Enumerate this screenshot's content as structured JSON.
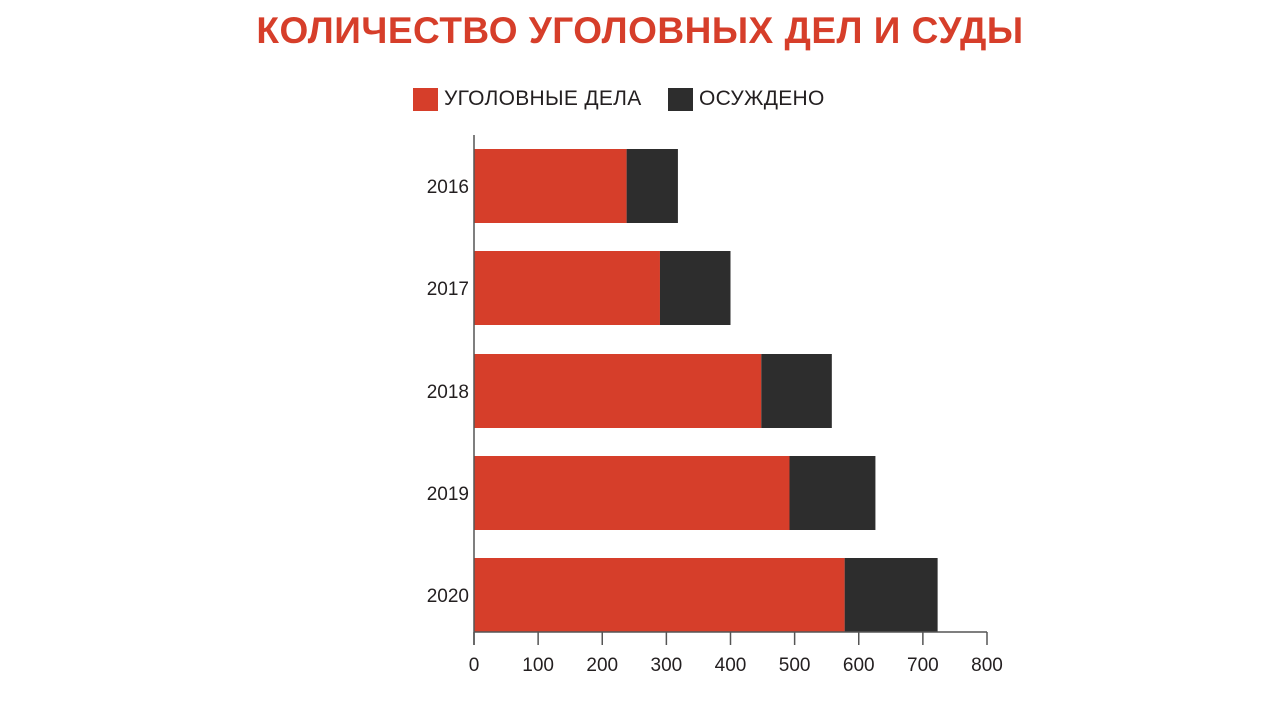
{
  "title": "КОЛИЧЕСТВО УГОЛОВНЫХ ДЕЛ И СУДЫ",
  "colors": {
    "title": "#d63e2a",
    "criminal_cases": "#d63e2a",
    "convicted": "#2d2d2d",
    "axis": "#555555",
    "text": "#231f20"
  },
  "legend": [
    {
      "label": "УГОЛОВНЫЕ ДЕЛА",
      "color": "#d63e2a"
    },
    {
      "label": "ОСУЖДЕНО",
      "color": "#2d2d2d"
    }
  ],
  "chart_data": {
    "type": "bar",
    "orientation": "horizontal",
    "stacked": true,
    "title": "КОЛИЧЕСТВО УГОЛОВНЫХ ДЕЛ И СУДЫ",
    "categories": [
      "2016",
      "2017",
      "2018",
      "2019",
      "2020"
    ],
    "series": [
      {
        "name": "УГОЛОВНЫЕ ДЕЛА",
        "color": "#d63e2a",
        "values": [
          238,
          290,
          448,
          492,
          578
        ]
      },
      {
        "name": "ОСУЖДЕНО",
        "color": "#2d2d2d",
        "values": [
          80,
          110,
          110,
          134,
          145
        ]
      }
    ],
    "xlim": [
      0,
      800
    ],
    "xticks": [
      "0",
      "100",
      "200",
      "300",
      "400",
      "500",
      "600",
      "700",
      "800"
    ],
    "legend_position": "top",
    "grid": false
  }
}
